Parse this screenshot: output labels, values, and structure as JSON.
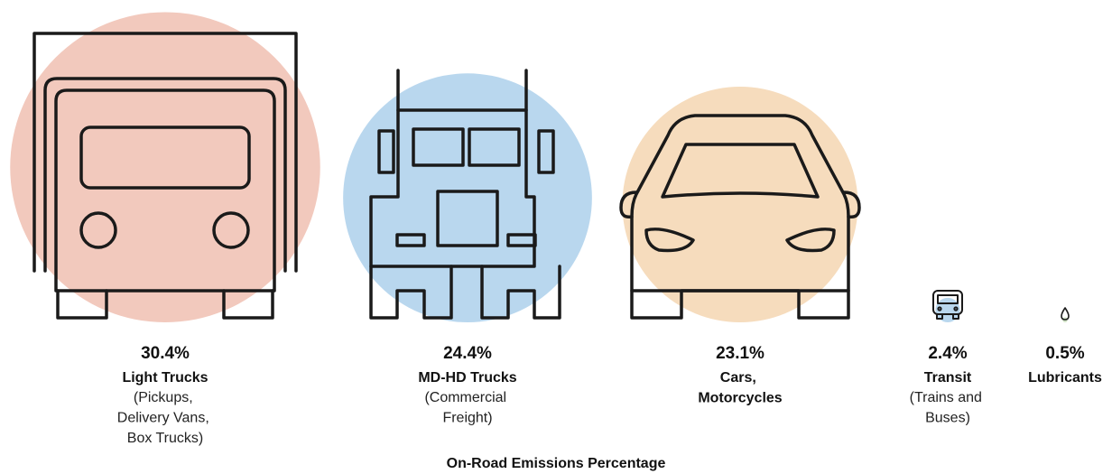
{
  "chart_data": {
    "type": "bubble",
    "title": "On-Road Emissions Percentage",
    "categories": [
      "Light Trucks",
      "MD-HD Trucks",
      "Cars, Motorcycles",
      "Transit",
      "Lubricants"
    ],
    "descriptions": [
      "(Pickups, Delivery Vans, Box Trucks)",
      "(Commercial Freight)",
      null,
      "(Trains and Buses)",
      null
    ],
    "values": [
      30.4,
      24.4,
      23.1,
      2.4,
      0.5
    ],
    "value_labels": [
      "30.4%",
      "24.4%",
      "23.1%",
      "2.4%",
      "0.5%"
    ],
    "colors": [
      "#f2c9bd",
      "#b9d7ee",
      "#f6dcbd",
      "#b9d7ee",
      "#cfe3c4"
    ]
  }
}
